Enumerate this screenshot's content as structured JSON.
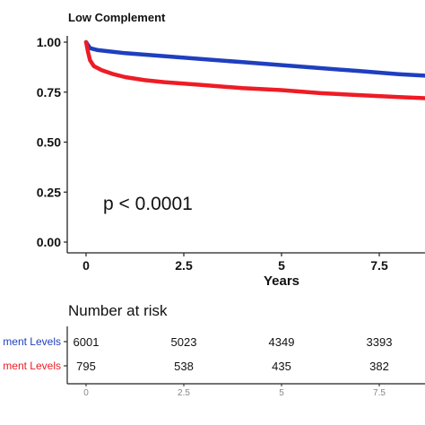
{
  "chart_data": {
    "type": "line",
    "title": "Low Complement",
    "xlabel": "Years",
    "ylabel": "",
    "xlim": [
      -0.5,
      9.3
    ],
    "ylim": [
      0,
      1
    ],
    "x_ticks": [
      "0",
      "2.5",
      "5",
      "7.5"
    ],
    "y_ticks": [
      "0.00",
      "0.25",
      "0.50",
      "0.75",
      "1.00"
    ],
    "annotation": "p < 0.0001",
    "series": [
      {
        "color": "#1f3fbf",
        "points": [
          [
            0,
            1.0
          ],
          [
            0.1,
            0.97
          ],
          [
            0.3,
            0.96
          ],
          [
            1,
            0.945
          ],
          [
            2,
            0.93
          ],
          [
            3,
            0.915
          ],
          [
            4,
            0.9
          ],
          [
            5,
            0.885
          ],
          [
            6,
            0.87
          ],
          [
            7,
            0.855
          ],
          [
            8,
            0.84
          ],
          [
            9.3,
            0.825
          ]
        ]
      },
      {
        "color": "#ee1c25",
        "points": [
          [
            0,
            1.0
          ],
          [
            0.05,
            0.95
          ],
          [
            0.1,
            0.91
          ],
          [
            0.2,
            0.88
          ],
          [
            0.4,
            0.86
          ],
          [
            0.7,
            0.84
          ],
          [
            1,
            0.825
          ],
          [
            1.5,
            0.81
          ],
          [
            2,
            0.8
          ],
          [
            3,
            0.785
          ],
          [
            4,
            0.77
          ],
          [
            5,
            0.76
          ],
          [
            6,
            0.745
          ],
          [
            7,
            0.735
          ],
          [
            8,
            0.725
          ],
          [
            9.3,
            0.715
          ]
        ]
      }
    ],
    "risk_table": {
      "title": "Number at risk",
      "rows": [
        {
          "label": "ment Levels",
          "color": "#1f3fbf",
          "values": [
            "6001",
            "5023",
            "4349",
            "3393"
          ]
        },
        {
          "label": "ment Levels",
          "color": "#ee1c25",
          "values": [
            "795",
            "538",
            "435",
            "382"
          ]
        }
      ],
      "x_ticks": [
        "0",
        "2.5",
        "5",
        "7.5"
      ]
    }
  }
}
